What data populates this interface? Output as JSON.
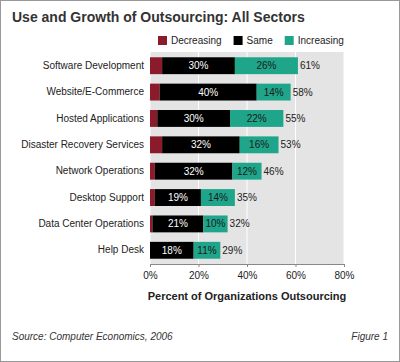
{
  "chart_data": {
    "type": "bar",
    "title": "Use and Growth of Outsourcing: All Sectors",
    "orientation": "horizontal",
    "stacked": true,
    "legend": "top",
    "grid": true,
    "data_labels": true,
    "categories": [
      "Software Development",
      "Website/E-Commerce",
      "Hosted Applications",
      "Disaster Recovery Services",
      "Network Operations",
      "Desktop Support",
      "Data Center Operations",
      "Help Desk"
    ],
    "series": [
      {
        "name": "Decreasing",
        "color": "#8b1a2b",
        "data_labels": false,
        "values": [
          5,
          4,
          3,
          5,
          2,
          2,
          1,
          0
        ]
      },
      {
        "name": "Same",
        "color": "#000000",
        "data_labels": true,
        "values": [
          30,
          40,
          30,
          32,
          32,
          19,
          21,
          18
        ],
        "value_labels": [
          "30%",
          "40%",
          "30%",
          "32%",
          "32%",
          "19%",
          "21%",
          "18%"
        ]
      },
      {
        "name": "Increasing",
        "color": "#1fa58a",
        "data_labels": true,
        "values": [
          26,
          14,
          22,
          16,
          12,
          14,
          10,
          11
        ],
        "value_labels": [
          "26%",
          "14%",
          "22%",
          "16%",
          "12%",
          "14%",
          "10%",
          "11%"
        ]
      }
    ],
    "totals": [
      61,
      58,
      55,
      53,
      46,
      35,
      32,
      29
    ],
    "total_labels": [
      "61%",
      "58%",
      "55%",
      "53%",
      "46%",
      "35%",
      "32%",
      "29%"
    ],
    "xlabel": "Percent of Organizations Outsourcing",
    "xlim": [
      0,
      80
    ],
    "xticks": [
      {
        "value": 0,
        "label": "0%"
      },
      {
        "value": 20,
        "label": "20%"
      },
      {
        "value": 40,
        "label": "40%"
      },
      {
        "value": 60,
        "label": "60%"
      },
      {
        "value": 80,
        "label": "80%"
      }
    ],
    "source": "Source: Computer Economics, 2006",
    "figure_label": "Figure 1"
  }
}
